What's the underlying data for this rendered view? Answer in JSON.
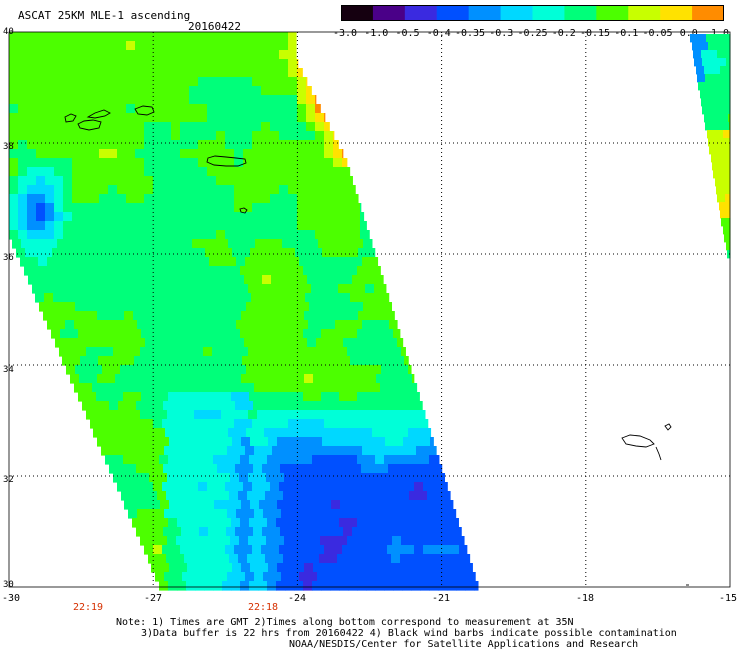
{
  "header": {
    "title": "ASCAT 25KM MLE-1 ascending",
    "date": "20160422"
  },
  "colorbar": {
    "labels": [
      "-3.0",
      "-1.0",
      "-0.5",
      "-0.4",
      "-0.35",
      "-0.3",
      "-0.25",
      "-0.2",
      "-0.15",
      "-0.1",
      "-0.05",
      "0.0",
      "1.0"
    ],
    "colors": [
      "#150010",
      "#4a0088",
      "#3a2ae0",
      "#0050ff",
      "#0090ff",
      "#00d8ff",
      "#00ffd8",
      "#00ff7a",
      "#4cff00",
      "#c8ff00",
      "#ffe200",
      "#ff8c00",
      "#ff1000"
    ]
  },
  "map": {
    "lat_labels": [
      "40",
      "38",
      "36",
      "34",
      "32",
      "30"
    ],
    "lon_labels": [
      "-30",
      "-27",
      "-24",
      "-21",
      "-18",
      "-15"
    ],
    "lat_range": [
      30,
      40
    ],
    "lon_range": [
      -30,
      -15
    ]
  },
  "times": [
    "22:19",
    "22:18"
  ],
  "notes": [
    "Note: 1) Times are GMT 2)Times along bottom correspond to measurement at 35N",
    "3)Data buffer is 22 hrs from 20160422 4) Black wind barbs indicate possible contamination",
    "NOAA/NESDIS/Center for Satellite Applications and Research"
  ]
}
